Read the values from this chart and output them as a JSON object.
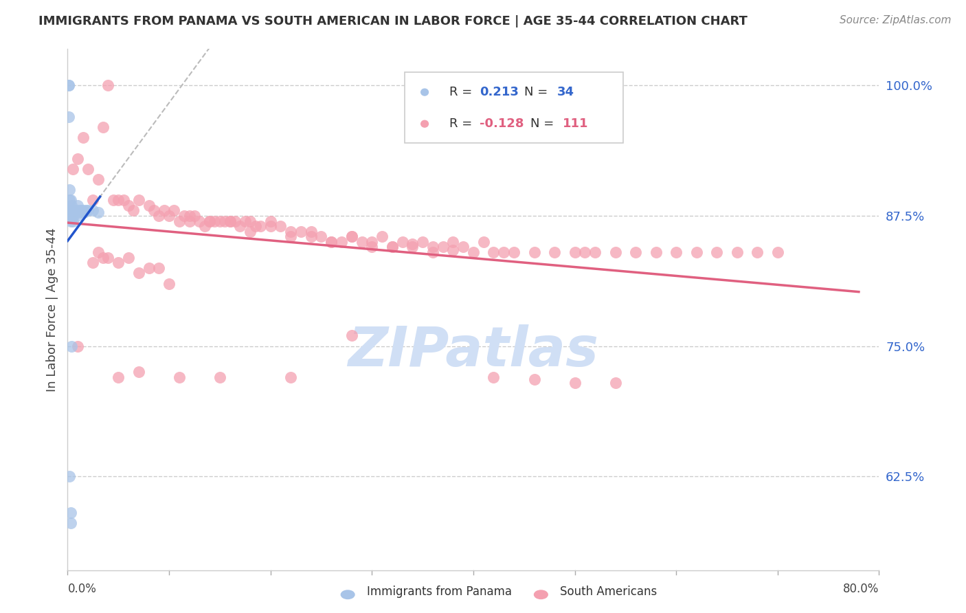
{
  "title": "IMMIGRANTS FROM PANAMA VS SOUTH AMERICAN IN LABOR FORCE | AGE 35-44 CORRELATION CHART",
  "source": "Source: ZipAtlas.com",
  "ylabel": "In Labor Force | Age 35-44",
  "yticks": [
    0.625,
    0.75,
    0.875,
    1.0
  ],
  "ytick_labels": [
    "62.5%",
    "75.0%",
    "87.5%",
    "100.0%"
  ],
  "xlim": [
    0.0,
    0.8
  ],
  "ylim": [
    0.535,
    1.035
  ],
  "legend_r_panama_val": "0.213",
  "legend_n_panama_val": "34",
  "legend_r_south_val": "-0.128",
  "legend_n_south_val": "111",
  "panama_color": "#a8c4e8",
  "south_color": "#f4a0b0",
  "panama_line_color": "#2255cc",
  "south_line_color": "#e06080",
  "dash_color": "#bbbbbb",
  "watermark_color": "#d0dff5",
  "panama_x": [
    0.001,
    0.001,
    0.001,
    0.002,
    0.002,
    0.002,
    0.002,
    0.003,
    0.003,
    0.003,
    0.003,
    0.004,
    0.004,
    0.005,
    0.005,
    0.006,
    0.006,
    0.007,
    0.008,
    0.009,
    0.01,
    0.011,
    0.012,
    0.013,
    0.015,
    0.016,
    0.018,
    0.02,
    0.025,
    0.03,
    0.002,
    0.003,
    0.003,
    0.004
  ],
  "panama_y": [
    1.0,
    1.0,
    0.97,
    0.9,
    0.89,
    0.88,
    0.875,
    0.89,
    0.88,
    0.875,
    0.87,
    0.885,
    0.875,
    0.88,
    0.87,
    0.88,
    0.875,
    0.88,
    0.88,
    0.875,
    0.885,
    0.88,
    0.878,
    0.88,
    0.88,
    0.878,
    0.88,
    0.88,
    0.88,
    0.878,
    0.625,
    0.59,
    0.58,
    0.75
  ],
  "south_x": [
    0.035,
    0.04,
    0.01,
    0.015,
    0.005,
    0.02,
    0.025,
    0.03,
    0.045,
    0.05,
    0.055,
    0.06,
    0.065,
    0.07,
    0.08,
    0.085,
    0.09,
    0.095,
    0.1,
    0.105,
    0.11,
    0.115,
    0.12,
    0.125,
    0.13,
    0.135,
    0.14,
    0.145,
    0.15,
    0.155,
    0.16,
    0.165,
    0.17,
    0.175,
    0.18,
    0.185,
    0.19,
    0.2,
    0.21,
    0.22,
    0.23,
    0.24,
    0.25,
    0.26,
    0.27,
    0.28,
    0.29,
    0.3,
    0.31,
    0.32,
    0.33,
    0.34,
    0.35,
    0.36,
    0.37,
    0.38,
    0.39,
    0.4,
    0.41,
    0.42,
    0.43,
    0.44,
    0.46,
    0.48,
    0.5,
    0.51,
    0.52,
    0.54,
    0.56,
    0.58,
    0.6,
    0.62,
    0.64,
    0.66,
    0.68,
    0.7,
    0.025,
    0.03,
    0.035,
    0.04,
    0.05,
    0.06,
    0.07,
    0.08,
    0.09,
    0.1,
    0.12,
    0.14,
    0.16,
    0.18,
    0.2,
    0.22,
    0.24,
    0.26,
    0.28,
    0.3,
    0.32,
    0.34,
    0.36,
    0.38,
    0.42,
    0.46,
    0.5,
    0.54,
    0.01,
    0.05,
    0.07,
    0.11,
    0.15,
    0.22,
    0.28
  ],
  "south_y": [
    0.96,
    1.0,
    0.93,
    0.95,
    0.92,
    0.92,
    0.89,
    0.91,
    0.89,
    0.89,
    0.89,
    0.885,
    0.88,
    0.89,
    0.885,
    0.88,
    0.875,
    0.88,
    0.875,
    0.88,
    0.87,
    0.875,
    0.87,
    0.875,
    0.87,
    0.865,
    0.87,
    0.87,
    0.87,
    0.87,
    0.87,
    0.87,
    0.865,
    0.87,
    0.87,
    0.865,
    0.865,
    0.87,
    0.865,
    0.86,
    0.86,
    0.855,
    0.855,
    0.85,
    0.85,
    0.855,
    0.85,
    0.845,
    0.855,
    0.845,
    0.85,
    0.845,
    0.85,
    0.845,
    0.845,
    0.85,
    0.845,
    0.84,
    0.85,
    0.84,
    0.84,
    0.84,
    0.84,
    0.84,
    0.84,
    0.84,
    0.84,
    0.84,
    0.84,
    0.84,
    0.84,
    0.84,
    0.84,
    0.84,
    0.84,
    0.84,
    0.83,
    0.84,
    0.835,
    0.835,
    0.83,
    0.835,
    0.82,
    0.825,
    0.825,
    0.81,
    0.875,
    0.87,
    0.87,
    0.86,
    0.865,
    0.855,
    0.86,
    0.85,
    0.855,
    0.85,
    0.845,
    0.848,
    0.84,
    0.842,
    0.72,
    0.718,
    0.715,
    0.715,
    0.75,
    0.72,
    0.725,
    0.72,
    0.72,
    0.72,
    0.76
  ]
}
